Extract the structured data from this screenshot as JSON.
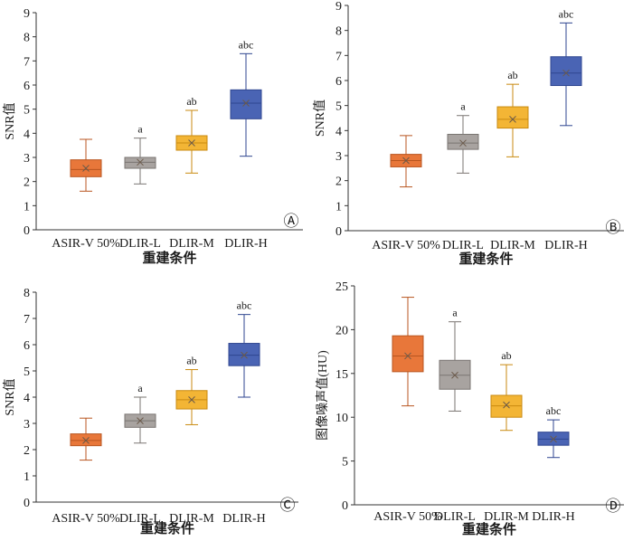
{
  "chart_data": [
    {
      "type": "box",
      "panel": "Ⓐ",
      "ylabel": "SNR值",
      "xlabel": "重建条件",
      "ylim": [
        0,
        9
      ],
      "yticks": [
        0,
        1,
        2,
        3,
        4,
        5,
        6,
        7,
        8,
        9
      ],
      "categories": [
        "ASIR-V 50%",
        "DLIR-L",
        "DLIR-M",
        "DLIR-H"
      ],
      "boxes": [
        {
          "min": 1.6,
          "q1": 2.2,
          "median": 2.5,
          "mean": 2.55,
          "q3": 2.9,
          "max": 3.75,
          "letters": ""
        },
        {
          "min": 1.9,
          "q1": 2.55,
          "median": 2.8,
          "mean": 2.8,
          "q3": 3.0,
          "max": 3.8,
          "letters": "a"
        },
        {
          "min": 2.35,
          "q1": 3.3,
          "median": 3.6,
          "mean": 3.6,
          "q3": 3.9,
          "max": 4.95,
          "letters": "ab"
        },
        {
          "min": 3.05,
          "q1": 4.6,
          "median": 5.25,
          "mean": 5.25,
          "q3": 5.8,
          "max": 7.3,
          "letters": "abc"
        }
      ]
    },
    {
      "type": "box",
      "panel": "Ⓑ",
      "ylabel": "SNR值",
      "xlabel": "重建条件",
      "ylim": [
        0,
        9
      ],
      "yticks": [
        0,
        1,
        2,
        3,
        4,
        5,
        6,
        7,
        8,
        9
      ],
      "categories": [
        "ASIR-V 50%",
        "DLIR-L",
        "DLIR-M",
        "DLIR-H"
      ],
      "boxes": [
        {
          "min": 1.75,
          "q1": 2.55,
          "median": 2.8,
          "mean": 2.8,
          "q3": 3.05,
          "max": 3.8,
          "letters": ""
        },
        {
          "min": 2.3,
          "q1": 3.25,
          "median": 3.5,
          "mean": 3.5,
          "q3": 3.85,
          "max": 4.6,
          "letters": "a"
        },
        {
          "min": 2.95,
          "q1": 4.1,
          "median": 4.45,
          "mean": 4.45,
          "q3": 4.95,
          "max": 5.85,
          "letters": "ab"
        },
        {
          "min": 4.2,
          "q1": 5.8,
          "median": 6.3,
          "mean": 6.3,
          "q3": 6.95,
          "max": 8.3,
          "letters": "abc"
        }
      ]
    },
    {
      "type": "box",
      "panel": "Ⓒ",
      "ylabel": "SNR值",
      "xlabel": "重建条件",
      "ylim": [
        0,
        8
      ],
      "yticks": [
        0,
        1,
        2,
        3,
        4,
        5,
        6,
        7,
        8
      ],
      "categories": [
        "ASIR-V 50%",
        "DLIR-L",
        "DLIR-M",
        "DLIR-H"
      ],
      "boxes": [
        {
          "min": 1.6,
          "q1": 2.15,
          "median": 2.35,
          "mean": 2.35,
          "q3": 2.6,
          "max": 3.2,
          "letters": ""
        },
        {
          "min": 2.25,
          "q1": 2.85,
          "median": 3.1,
          "mean": 3.1,
          "q3": 3.35,
          "max": 4.0,
          "letters": "a"
        },
        {
          "min": 2.95,
          "q1": 3.55,
          "median": 3.9,
          "mean": 3.9,
          "q3": 4.25,
          "max": 5.05,
          "letters": "ab"
        },
        {
          "min": 4.0,
          "q1": 5.2,
          "median": 5.6,
          "mean": 5.6,
          "q3": 6.05,
          "max": 7.15,
          "letters": "abc"
        }
      ]
    },
    {
      "type": "box",
      "panel": "Ⓓ",
      "ylabel": "图像噪声值(HU)",
      "xlabel": "重建条件",
      "ylim": [
        0,
        25
      ],
      "yticks": [
        0,
        5,
        10,
        15,
        20,
        25
      ],
      "categories": [
        "ASIR-V 50%",
        "DLIR-L",
        "DLIR-M",
        "DLIR-H"
      ],
      "boxes": [
        {
          "min": 11.3,
          "q1": 15.2,
          "median": 17.0,
          "mean": 17.0,
          "q3": 19.3,
          "max": 23.7,
          "letters": ""
        },
        {
          "min": 10.7,
          "q1": 13.2,
          "median": 14.8,
          "mean": 14.8,
          "q3": 16.5,
          "max": 20.9,
          "letters": "a"
        },
        {
          "min": 8.5,
          "q1": 10.0,
          "median": 11.3,
          "mean": 11.4,
          "q3": 12.5,
          "max": 16.0,
          "letters": "ab"
        },
        {
          "min": 5.4,
          "q1": 6.8,
          "median": 7.5,
          "mean": 7.5,
          "q3": 8.3,
          "max": 9.7,
          "letters": "abc"
        }
      ]
    }
  ],
  "colors": {
    "boxes": [
      "#e8773a",
      "#a8a3a0",
      "#f3b535",
      "#4a64b4"
    ],
    "edges": [
      "#b85520",
      "#7a7572",
      "#c98a10",
      "#2f4690"
    ],
    "axis": "#333333"
  }
}
